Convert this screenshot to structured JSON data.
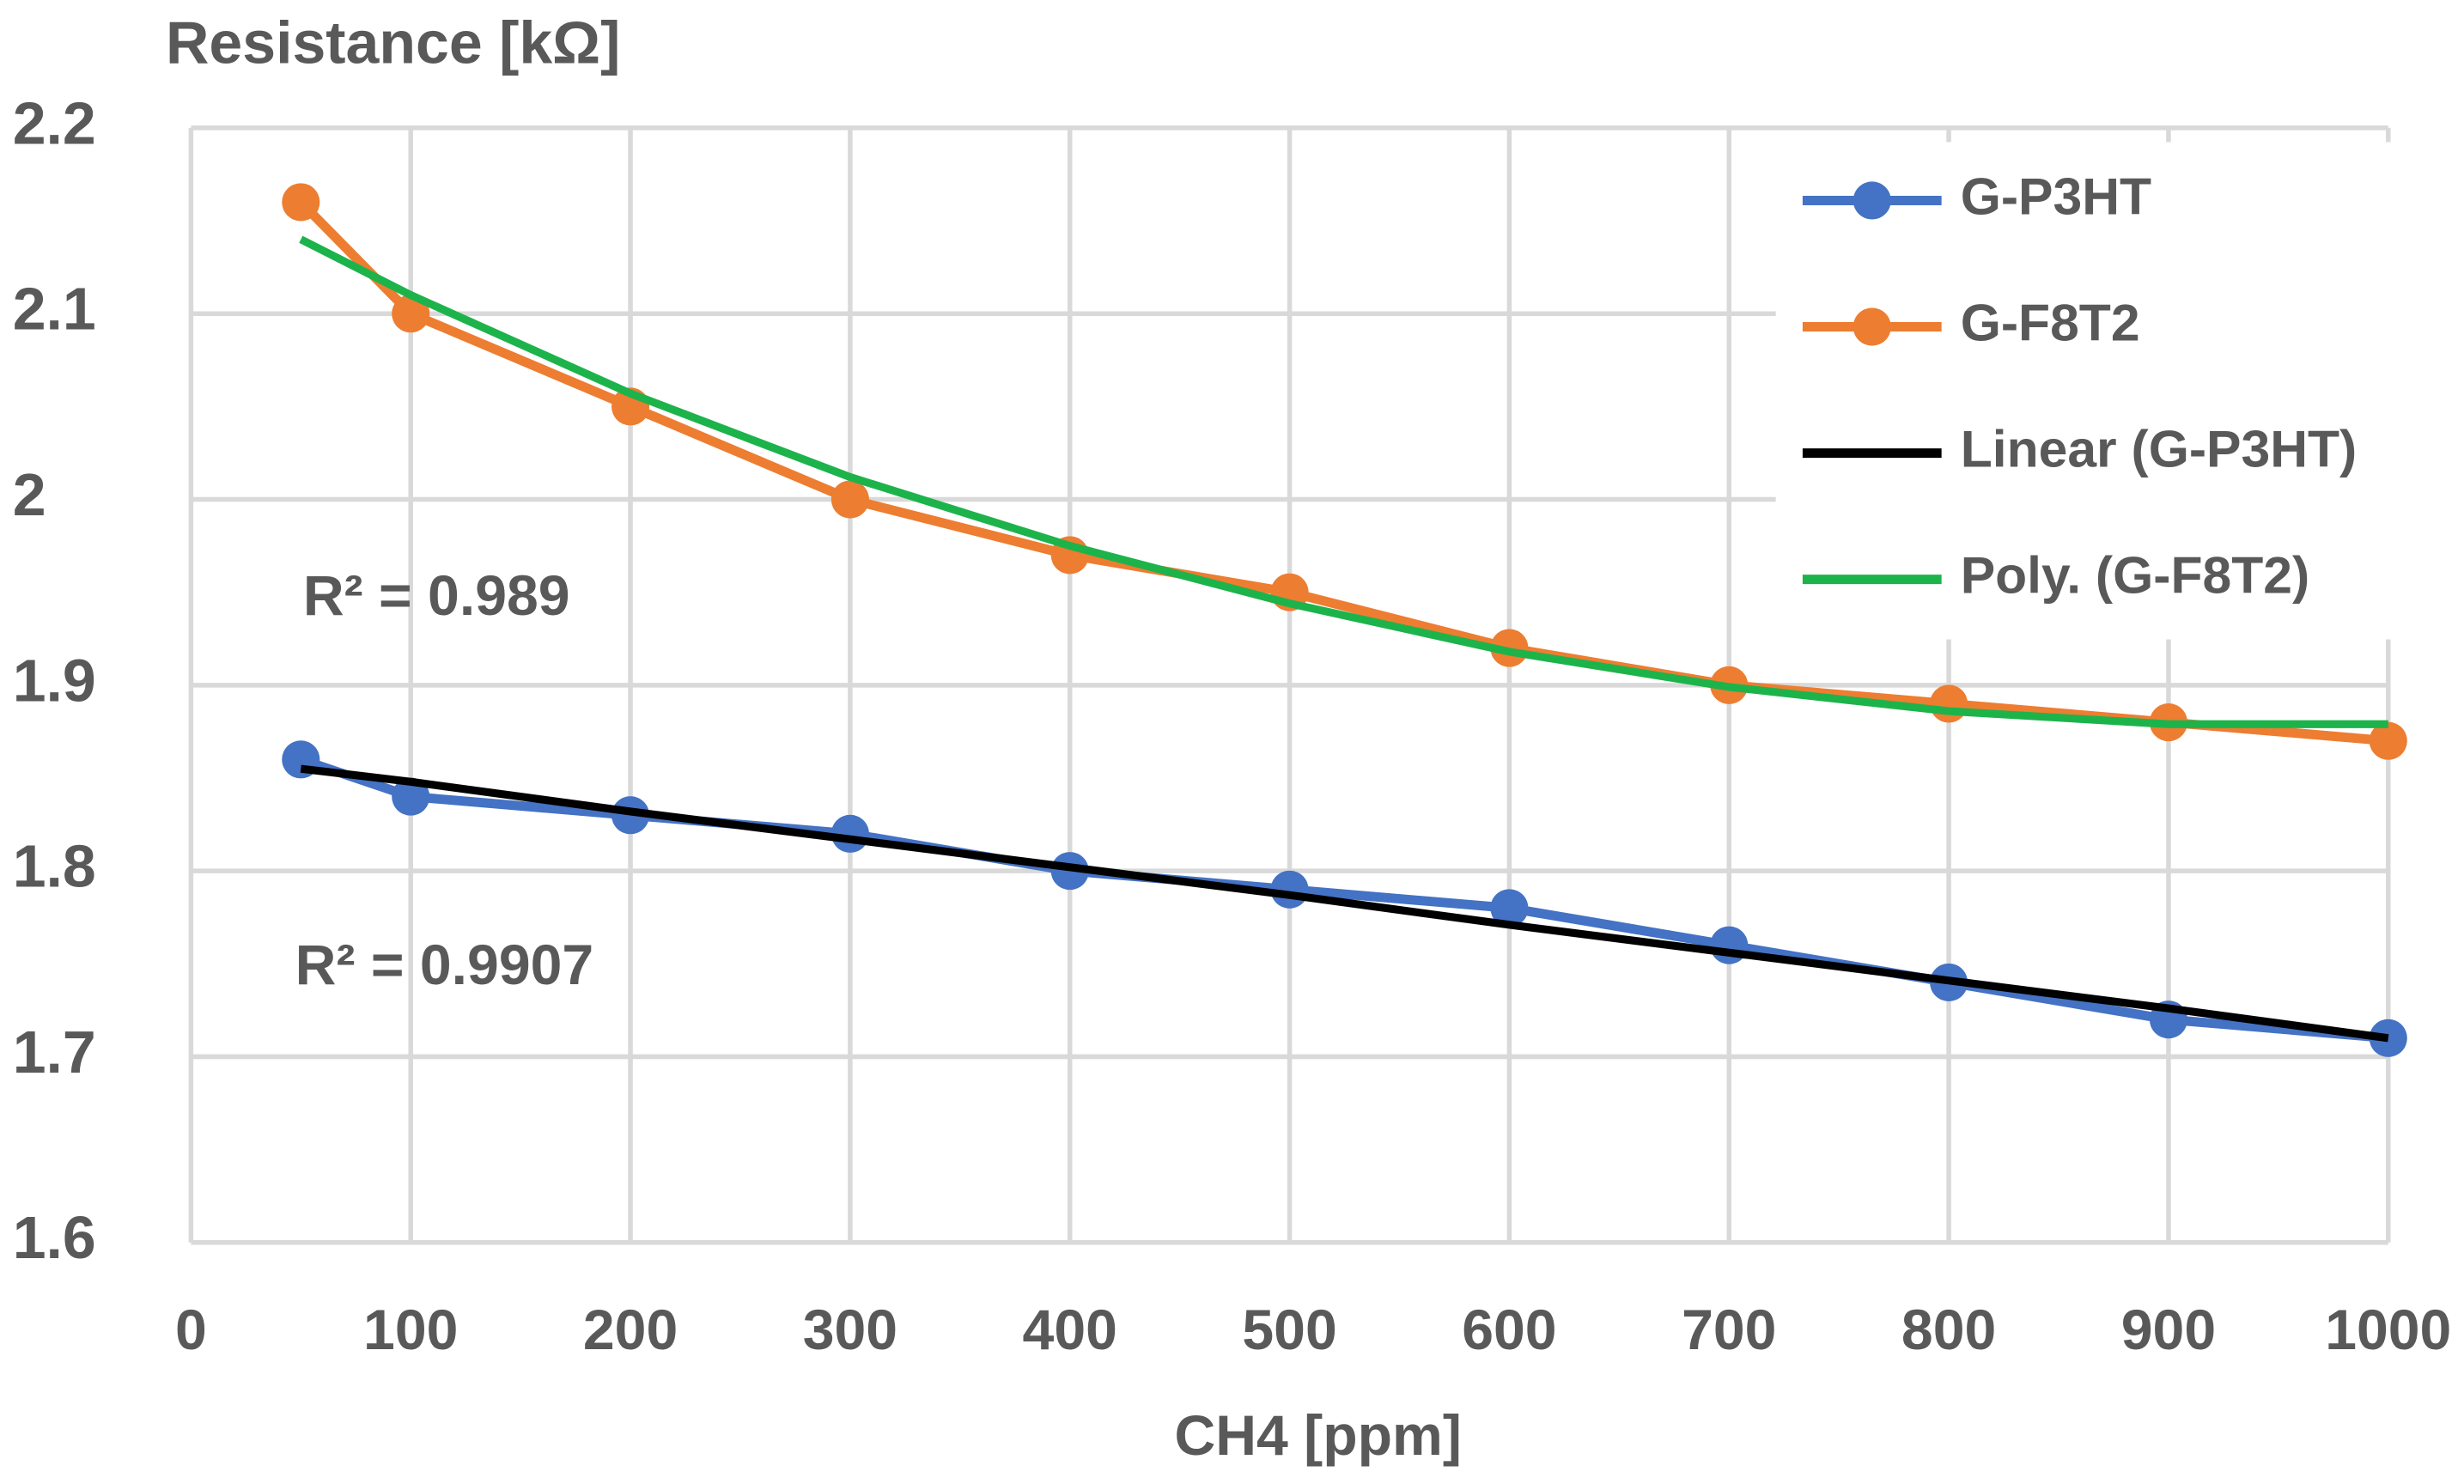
{
  "chart_data": {
    "type": "line",
    "y_axis_title": "Resistance [kΩ]",
    "x_axis_title": "CH4 [ppm]",
    "x": [
      50,
      100,
      200,
      300,
      400,
      500,
      600,
      700,
      800,
      900,
      1000
    ],
    "series": [
      {
        "name": "G-P3HT",
        "color": "#4472c4",
        "markers": true,
        "values": [
          1.86,
          1.84,
          1.83,
          1.82,
          1.8,
          1.79,
          1.78,
          1.76,
          1.74,
          1.72,
          1.71
        ]
      },
      {
        "name": "G-F8T2",
        "color": "#ed7d31",
        "markers": true,
        "values": [
          2.16,
          2.1,
          2.05,
          2.0,
          1.97,
          1.95,
          1.92,
          1.9,
          1.89,
          1.88,
          1.87
        ]
      },
      {
        "name": "Linear (G-P3HT)",
        "color": "#000000",
        "markers": false,
        "values": [
          1.855,
          1.848,
          1.832,
          1.817,
          1.802,
          1.787,
          1.771,
          1.756,
          1.741,
          1.726,
          1.71
        ]
      },
      {
        "name": "Poly. (G-F8T2)",
        "color": "#1db34b",
        "markers": false,
        "values": [
          2.14,
          2.11,
          2.057,
          2.012,
          1.975,
          1.944,
          1.918,
          1.899,
          1.886,
          1.879,
          1.879
        ]
      }
    ],
    "annotations": [
      {
        "text": "R² = 0.989"
      },
      {
        "text": "R² = 0.9907"
      }
    ],
    "xlim": [
      0,
      1000
    ],
    "xticks": [
      0,
      100,
      200,
      300,
      400,
      500,
      600,
      700,
      800,
      900,
      1000
    ],
    "ylim": [
      1.6,
      2.2
    ],
    "yticks": [
      1.6,
      1.7,
      1.8,
      1.9,
      2,
      2.1,
      2.2
    ],
    "grid": true,
    "legend": "top-right"
  }
}
